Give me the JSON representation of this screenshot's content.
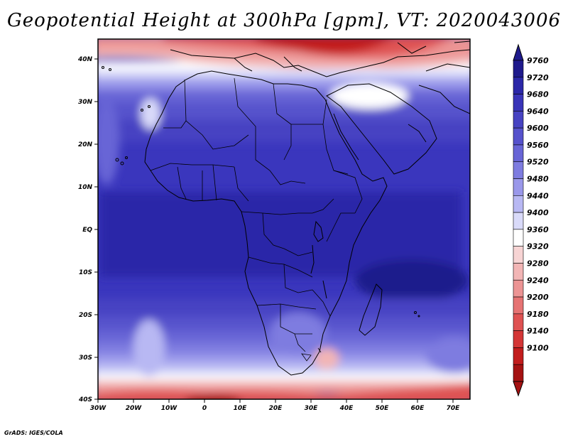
{
  "title": "Geopotential Height at 300hPa [gpm], VT: 2020043006",
  "lat_labels": [
    "40N",
    "30N",
    "20N",
    "10N",
    "EQ",
    "10S",
    "20S",
    "30S",
    "40S"
  ],
  "lon_labels": [
    "30W",
    "20W",
    "10W",
    "0",
    "10E",
    "20E",
    "30E",
    "40E",
    "50E",
    "60E",
    "70E"
  ],
  "colorbar": {
    "levels": [
      "9760",
      "9720",
      "9680",
      "9640",
      "9600",
      "9560",
      "9520",
      "9480",
      "9440",
      "9400",
      "9360",
      "9320",
      "9280",
      "9240",
      "9200",
      "9180",
      "9140",
      "9100"
    ],
    "colors": [
      "#1f1a8c",
      "#2b27a8",
      "#3934b8",
      "#4743c2",
      "#5652cc",
      "#6865d6",
      "#7e7ce0",
      "#9a98ea",
      "#b8b8f3",
      "#d9daf9",
      "#ffffff",
      "#f7d4d4",
      "#f2b5b5",
      "#ec9494",
      "#e67373",
      "#df5252",
      "#d43636",
      "#c21d1d",
      "#a51212"
    ]
  },
  "credit": "GrADS: IGES/COLA"
}
